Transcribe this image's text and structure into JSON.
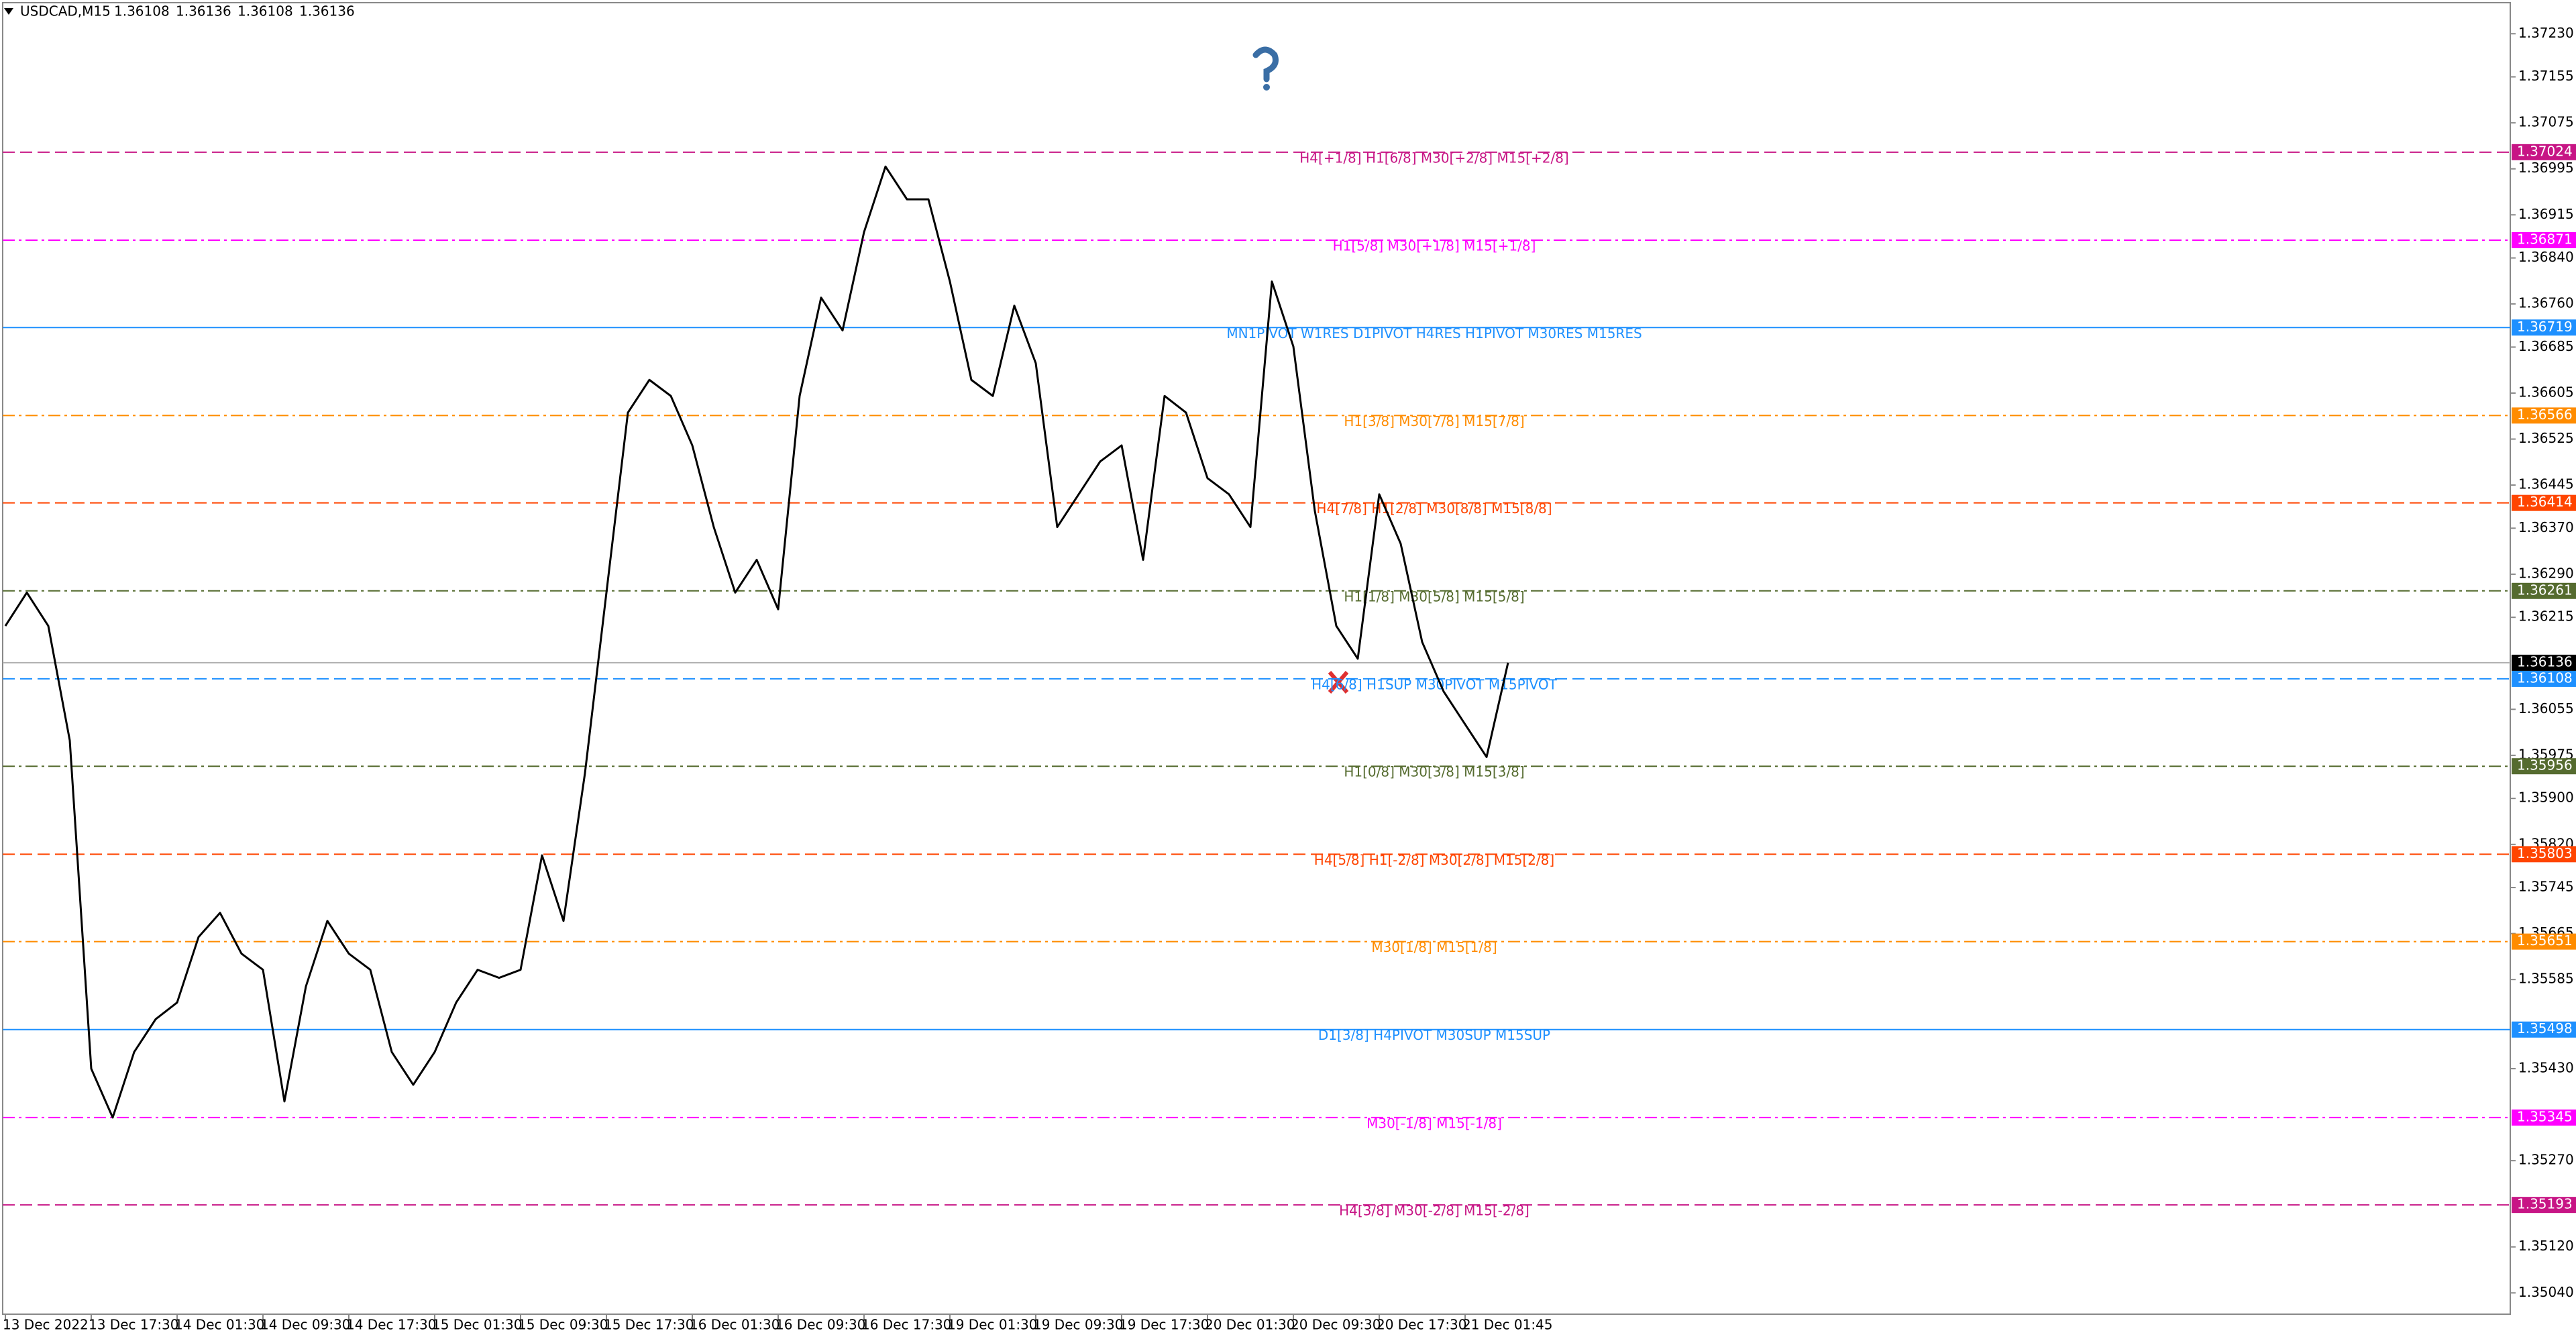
{
  "chart_data": {
    "type": "line",
    "title": "USDCAD,M15",
    "ohlc": [
      1.36108,
      1.36136,
      1.36108,
      1.36136
    ],
    "categories": [
      "13 Dec 2022",
      null,
      null,
      null,
      "13 Dec 17:30",
      null,
      null,
      null,
      "14 Dec 01:30",
      null,
      null,
      null,
      "14 Dec 09:30",
      null,
      null,
      null,
      "14 Dec 17:30",
      null,
      null,
      null,
      "15 Dec 01:30",
      null,
      null,
      null,
      "15 Dec 09:30",
      null,
      null,
      null,
      "15 Dec 17:30",
      null,
      null,
      null,
      "16 Dec 01:30",
      null,
      null,
      null,
      "16 Dec 09:30",
      null,
      null,
      null,
      "16 Dec 17:30",
      null,
      null,
      null,
      "19 Dec 01:30",
      null,
      null,
      null,
      "19 Dec 09:30",
      null,
      null,
      null,
      "19 Dec 17:30",
      null,
      null,
      null,
      "20 Dec 01:30",
      null,
      null,
      null,
      "20 Dec 09:30",
      null,
      null,
      null,
      "20 Dec 17:30",
      null,
      null,
      null,
      "21 Dec 01:45",
      null,
      null
    ],
    "values": [
      1.362,
      1.36258,
      1.362,
      1.36001,
      1.3543,
      1.35345,
      1.35459,
      1.35516,
      1.35545,
      1.35659,
      1.35701,
      1.3563,
      1.35602,
      1.35373,
      1.35573,
      1.35687,
      1.3563,
      1.35602,
      1.35459,
      1.35402,
      1.35459,
      1.35545,
      1.35602,
      1.35588,
      1.35602,
      1.35801,
      1.35687,
      1.35944,
      1.36258,
      1.36571,
      1.36628,
      1.366,
      1.36514,
      1.36372,
      1.36258,
      1.36315,
      1.36229,
      1.366,
      1.36771,
      1.36714,
      1.36885,
      1.36999,
      1.36942,
      1.36942,
      1.36799,
      1.36628,
      1.366,
      1.36757,
      1.36657,
      1.36372,
      1.36429,
      1.36486,
      1.36514,
      1.36315,
      1.366,
      1.36571,
      1.36457,
      1.36429,
      1.36372,
      1.36799,
      1.36686,
      1.364,
      1.362,
      1.36143,
      1.36429,
      1.36343,
      1.36172,
      1.36086,
      1.36029,
      1.35972,
      1.36136
    ],
    "color": "#000000",
    "ylim": [
      1.35003,
      1.37284
    ],
    "yticks": [
      {
        "value": 1.3723,
        "label": "1.37230"
      },
      1.37155,
      1.37075,
      1.36995,
      1.36915,
      {
        "value": 1.3684,
        "label": "1.36840"
      },
      {
        "value": 1.3676,
        "label": "1.36760"
      },
      1.36685,
      1.36605,
      1.36525,
      1.36445,
      {
        "value": 1.3637,
        "label": "1.36370"
      },
      {
        "value": 1.3629,
        "label": "1.36290"
      },
      1.36215,
      1.36055,
      1.35975,
      {
        "value": 1.359,
        "label": "1.35900"
      },
      {
        "value": 1.3582,
        "label": "1.35820"
      },
      1.35745,
      1.35665,
      1.35585,
      {
        "value": 1.3543,
        "label": "1.35430"
      },
      {
        "value": 1.3527,
        "label": "1.35270"
      },
      {
        "value": 1.3512,
        "label": "1.35120"
      },
      {
        "value": 1.3504,
        "label": "1.35040"
      }
    ],
    "current_price": 1.36136,
    "levels": [
      {
        "value": 1.37024,
        "text": "H4[+1/8] H1[6/8] M30[+2/8] M15[+2/8]",
        "color": "#c71585"
      },
      {
        "value": 1.36871,
        "text": "H1[5/8] M30[+1/8] M15[+1/8]",
        "color": "#ff00ff"
      },
      {
        "value": 1.36719,
        "text": "MN1PIVOT W1RES D1PIVOT H4RES H1PIVOT M30RES M15RES",
        "color": "#1e90ff"
      },
      {
        "value": 1.36566,
        "text": "H1[3/8] M30[7/8] M15[7/8]",
        "color": "#ff8c00"
      },
      {
        "value": 1.36414,
        "text": "H4[7/8] H1[2/8] M30[8/8] M15[8/8]",
        "color": "#ff4500"
      },
      {
        "value": 1.36261,
        "text": "H1[1/8] M30[5/8] M15[5/8]",
        "color": "#556b2f"
      },
      {
        "value": 1.36108,
        "text": "H4[6/8] H1SUP M30PIVOT M15PIVOT",
        "color": "#1e90ff"
      },
      {
        "value": 1.35956,
        "text": "H1[0/8] M30[3/8] M15[3/8]",
        "color": "#556b2f"
      },
      {
        "value": 1.35803,
        "text": "H4[5/8] H1[-2/8] M30[2/8] M15[2/8]",
        "color": "#ff4500"
      },
      {
        "value": 1.35651,
        "text": "M30[1/8] M15[1/8]",
        "color": "#ff8c00"
      },
      {
        "value": 1.35498,
        "text": "D1[3/8] H4PIVOT M30SUP M15SUP",
        "color": "#1e90ff"
      },
      {
        "value": 1.35345,
        "text": "M30[-1/8] M15[-1/8]",
        "color": "#ff00ff"
      },
      {
        "value": 1.35193,
        "text": "H4[3/8] M30[-2/8] M15[-2/8]",
        "color": "#c71585"
      }
    ]
  }
}
